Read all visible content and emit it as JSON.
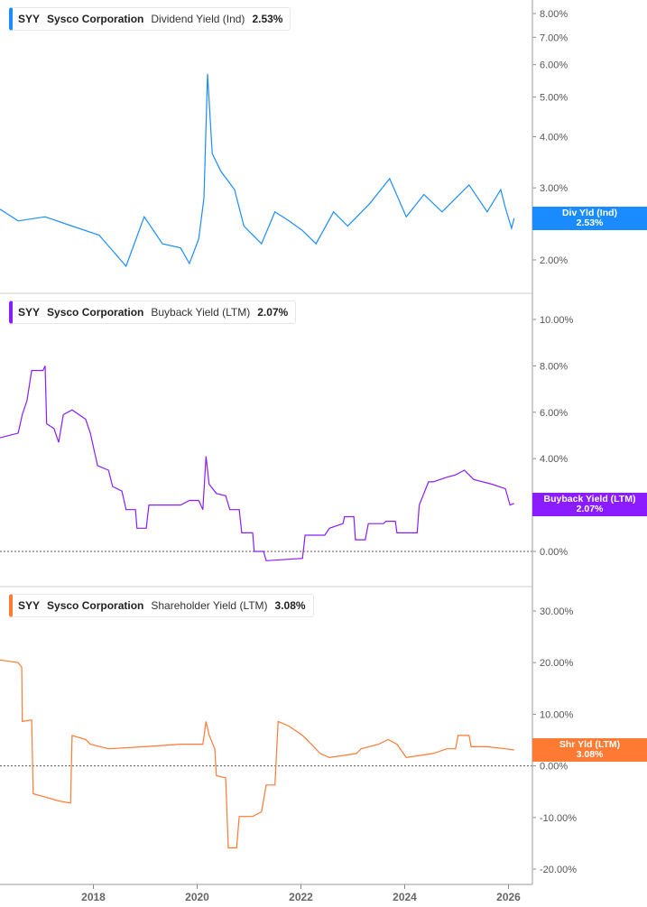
{
  "x_axis": {
    "ticks": [
      2018,
      2020,
      2022,
      2024,
      2026
    ]
  },
  "chart_data": [
    {
      "type": "line",
      "ticker": "SYY",
      "company": "Sysco Corporation",
      "metric": "Dividend Yield (Ind)",
      "value_label": "2.53%",
      "tag_label": "Div Yld (Ind)",
      "tag_value": "2.53%",
      "color": "#1a8cff",
      "scale": "log",
      "ylim": [
        1.7,
        8.6
      ],
      "yticks": [
        "8.00%",
        "7.00%",
        "6.00%",
        "5.00%",
        "4.00%",
        "3.00%",
        "2.00%"
      ],
      "ytick_values": [
        8,
        7,
        6,
        5,
        4,
        3,
        2
      ],
      "x": [
        2016.2,
        2016.55,
        2017.07,
        2017.59,
        2018.11,
        2018.63,
        2018.98,
        2019.33,
        2019.68,
        2019.85,
        2020.03,
        2020.13,
        2020.2,
        2020.29,
        2020.46,
        2020.72,
        2020.9,
        2021.24,
        2021.5,
        2021.77,
        2022.03,
        2022.29,
        2022.63,
        2022.9,
        2023.33,
        2023.71,
        2024.03,
        2024.37,
        2024.72,
        2025.24,
        2025.59,
        2025.85,
        2025.94,
        2026.06,
        2026.11
      ],
      "y": [
        2.66,
        2.49,
        2.55,
        2.42,
        2.3,
        1.93,
        2.55,
        2.19,
        2.14,
        1.96,
        2.25,
        2.83,
        5.7,
        3.64,
        3.29,
        2.97,
        2.42,
        2.19,
        2.62,
        2.49,
        2.36,
        2.19,
        2.62,
        2.42,
        2.75,
        3.16,
        2.55,
        2.89,
        2.62,
        3.05,
        2.62,
        2.97,
        2.68,
        2.39,
        2.53
      ]
    },
    {
      "type": "line",
      "ticker": "SYY",
      "company": "Sysco Corporation",
      "metric": "Buyback Yield (LTM)",
      "value_label": "2.07%",
      "tag_label": "Buyback Yield (LTM)",
      "tag_value": "2.07%",
      "color": "#8a1cff",
      "scale": "linear",
      "ylim": [
        -0.8,
        10.5
      ],
      "yticks": [
        "10.00%",
        "8.00%",
        "6.00%",
        "4.00%",
        "0.00%"
      ],
      "ytick_values": [
        10,
        8,
        6,
        4,
        0
      ],
      "zero_line": true,
      "x": [
        2016.2,
        2016.55,
        2016.63,
        2016.72,
        2016.81,
        2017.03,
        2017.07,
        2017.1,
        2017.24,
        2017.33,
        2017.42,
        2017.59,
        2017.85,
        2017.94,
        2018.08,
        2018.29,
        2018.37,
        2018.55,
        2018.63,
        2018.81,
        2018.84,
        2019.02,
        2019.07,
        2019.68,
        2019.85,
        2020.03,
        2020.11,
        2020.17,
        2020.23,
        2020.37,
        2020.55,
        2020.63,
        2020.81,
        2020.86,
        2021.07,
        2021.1,
        2021.28,
        2021.33,
        2022.03,
        2022.08,
        2022.46,
        2022.55,
        2022.81,
        2022.84,
        2023.02,
        2023.05,
        2023.24,
        2023.3,
        2023.59,
        2023.64,
        2023.82,
        2023.85,
        2024.24,
        2024.28,
        2024.46,
        2024.55,
        2024.81,
        2024.98,
        2025.15,
        2025.33,
        2025.68,
        2025.94,
        2026.03,
        2026.11
      ],
      "y": [
        4.9,
        5.1,
        5.9,
        6.5,
        7.8,
        7.8,
        8.0,
        5.5,
        5.3,
        4.7,
        5.9,
        6.1,
        5.7,
        5.1,
        3.7,
        3.5,
        2.8,
        2.6,
        1.8,
        1.8,
        1.0,
        1.0,
        2.0,
        2.0,
        2.2,
        2.2,
        1.8,
        4.1,
        2.9,
        2.5,
        2.4,
        1.8,
        1.8,
        0.8,
        0.8,
        0.0,
        0.0,
        -0.4,
        -0.3,
        0.7,
        0.7,
        1.0,
        1.2,
        1.5,
        1.5,
        0.5,
        0.5,
        1.2,
        1.2,
        1.3,
        1.3,
        0.8,
        0.8,
        2.0,
        3.0,
        3.0,
        3.2,
        3.3,
        3.5,
        3.1,
        2.9,
        2.7,
        2.0,
        2.07
      ]
    },
    {
      "type": "line",
      "ticker": "SYY",
      "company": "Sysco Corporation",
      "metric": "Shareholder Yield (LTM)",
      "value_label": "3.08%",
      "tag_label": "Shr Yld (LTM)",
      "tag_value": "3.08%",
      "color": "#ff7a33",
      "scale": "linear",
      "ylim": [
        -21.5,
        33
      ],
      "yticks": [
        "30.00%",
        "20.00%",
        "10.00%",
        "0.00%",
        "-10.00%",
        "-20.00%"
      ],
      "ytick_values": [
        30,
        20,
        10,
        0,
        -10,
        -20
      ],
      "zero_line": true,
      "x": [
        2016.2,
        2016.55,
        2016.62,
        2016.63,
        2016.81,
        2016.84,
        2017.16,
        2017.33,
        2017.56,
        2017.59,
        2017.85,
        2017.94,
        2018.29,
        2018.98,
        2019.68,
        2020.11,
        2020.17,
        2020.23,
        2020.34,
        2020.37,
        2020.55,
        2020.6,
        2020.76,
        2020.81,
        2021.07,
        2021.24,
        2021.33,
        2021.5,
        2021.56,
        2021.77,
        2022.03,
        2022.2,
        2022.37,
        2022.55,
        2023.07,
        2023.16,
        2023.5,
        2023.68,
        2023.85,
        2024.03,
        2024.55,
        2024.81,
        2024.98,
        2025.03,
        2025.24,
        2025.28,
        2025.59,
        2025.94,
        2026.11
      ],
      "y": [
        20.5,
        20.0,
        19.1,
        8.6,
        8.9,
        -5.4,
        -6.3,
        -6.8,
        -7.2,
        5.9,
        5.1,
        4.2,
        3.3,
        3.7,
        4.2,
        4.2,
        8.6,
        6.0,
        3.3,
        -1.9,
        -2.3,
        -15.9,
        -15.9,
        -9.8,
        -9.8,
        -8.9,
        -3.7,
        -3.7,
        8.6,
        7.7,
        5.9,
        4.2,
        2.4,
        1.6,
        2.4,
        3.3,
        4.2,
        5.1,
        4.2,
        1.6,
        2.4,
        3.3,
        3.3,
        5.9,
        5.9,
        3.7,
        3.7,
        3.3,
        3.08
      ]
    }
  ]
}
